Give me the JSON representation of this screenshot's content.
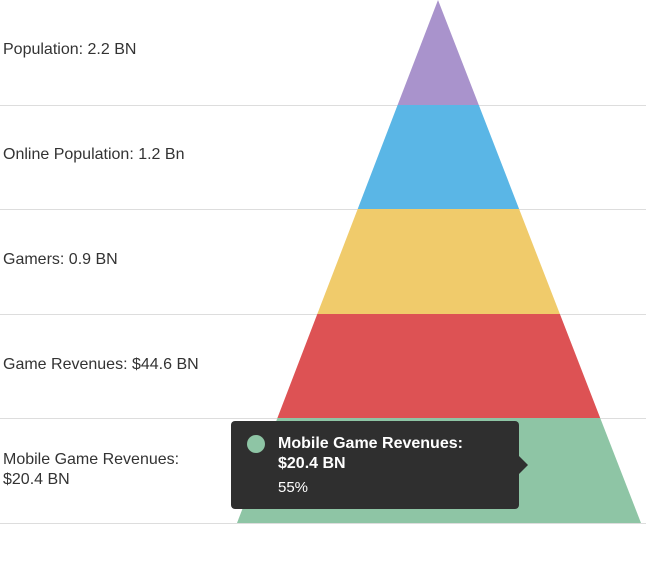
{
  "chart_data": {
    "type": "pyramid",
    "categories": [
      "Population: 2.2 BN",
      "Online Population: 1.2 Bn",
      "Gamers: 0.9 BN",
      "Game Revenues: $44.6 BN",
      "Mobile Game Revenues: $20.4 BN"
    ],
    "colors": [
      "#a993cc",
      "#5ab6e6",
      "#f0cb6b",
      "#dd5254",
      "#8ec5a5"
    ],
    "legend": "left labels"
  },
  "tooltip": {
    "title_line1": "Mobile Game Revenues:",
    "title_line2": "$20.4 BN",
    "percent": "55%",
    "color": "#8ec5a5"
  }
}
